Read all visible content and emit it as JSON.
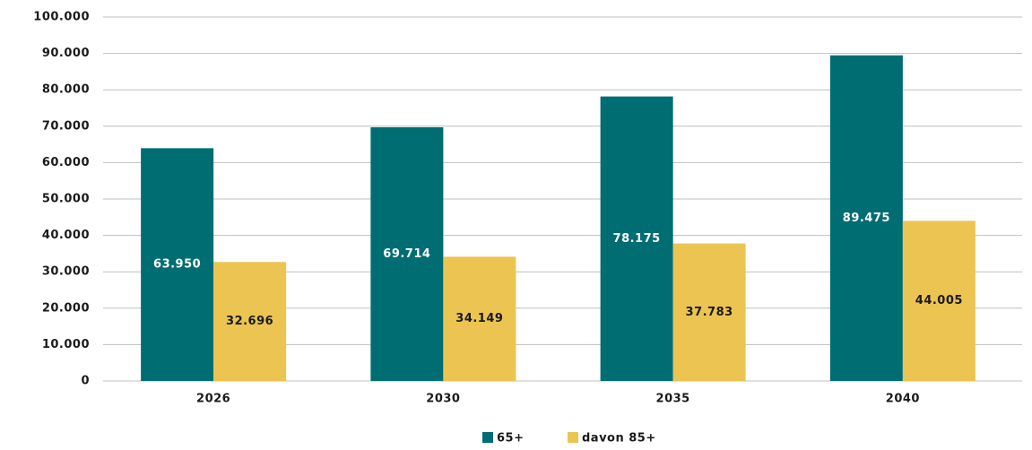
{
  "chart_data": {
    "type": "bar",
    "categories": [
      "2026",
      "2030",
      "2035",
      "2040"
    ],
    "series": [
      {
        "name": "65+",
        "color": "#006d72",
        "values": [
          63950,
          69714,
          78175,
          89475
        ],
        "value_labels": [
          "63.950",
          "69.714",
          "78.175",
          "89.475"
        ]
      },
      {
        "name": "davon 85+",
        "color": "#ebc452",
        "values": [
          32696,
          34149,
          37783,
          44005
        ],
        "value_labels": [
          "32.696",
          "34.149",
          "37.783",
          "44.005"
        ]
      }
    ],
    "ylim": [
      0,
      100000
    ],
    "yticks": [
      0,
      {
        "value": 10000,
        "label": "10.000"
      },
      {
        "value": 20000,
        "label": "20.000"
      },
      {
        "value": 30000,
        "label": "30.000"
      },
      {
        "value": 40000,
        "label": "40.000"
      },
      {
        "value": 50000,
        "label": "50.000"
      },
      {
        "value": 60000,
        "label": "60.000"
      },
      {
        "value": 70000,
        "label": "70.000"
      },
      {
        "value": 80000,
        "label": "80.000"
      },
      {
        "value": 90000,
        "label": "90.000"
      },
      {
        "value": 100000,
        "label": "100.000"
      }
    ],
    "grid": true,
    "legend": "bottom"
  }
}
